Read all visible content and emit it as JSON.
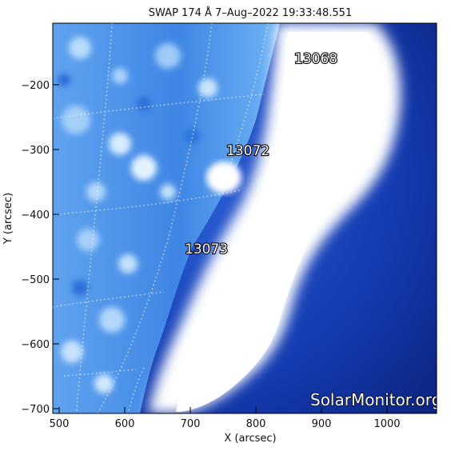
{
  "title": "SWAP 174 Å  7–Aug–2022 19:33:48.551",
  "xlabel": "X (arcsec)",
  "ylabel": "Y (arcsec)",
  "x_ticks": [
    "500",
    "600",
    "700",
    "800",
    "900",
    "1000"
  ],
  "y_ticks": [
    "−200",
    "−300",
    "−400",
    "−500",
    "−600",
    "−700"
  ],
  "regions": [
    "13068",
    "13072",
    "13073"
  ],
  "watermark": "SolarMonitor.org",
  "colors": {
    "background": "#0b2a8f",
    "disk": "#3d86e6",
    "bright": "#ffffff"
  }
}
